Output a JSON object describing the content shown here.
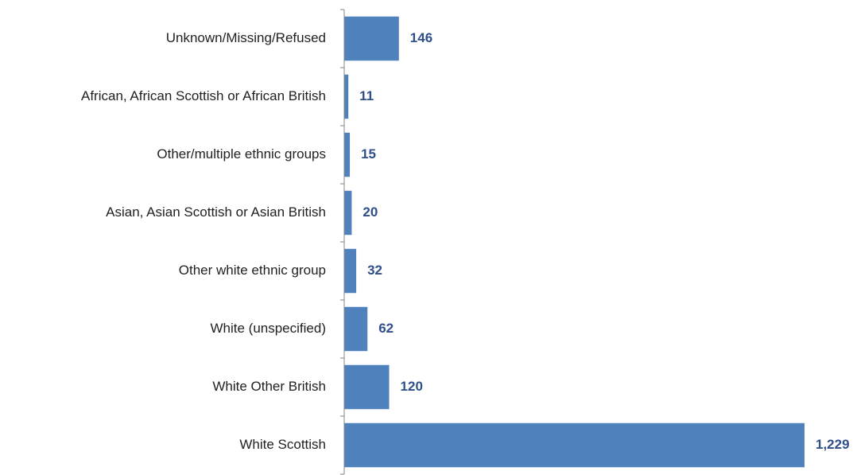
{
  "chart_data": {
    "type": "bar",
    "orientation": "horizontal",
    "categories": [
      "Unknown/Missing/Refused",
      "African, African Scottish or African British",
      "Other/multiple ethnic groups",
      "Asian, Asian Scottish or Asian British",
      "Other white ethnic group",
      "White (unspecified)",
      "White Other British",
      "White Scottish"
    ],
    "values": [
      146,
      11,
      15,
      20,
      32,
      62,
      120,
      1229
    ],
    "value_labels": [
      "146",
      "11",
      "15",
      "20",
      "32",
      "62",
      "120",
      "1,229"
    ],
    "color": "#4f81bd"
  }
}
